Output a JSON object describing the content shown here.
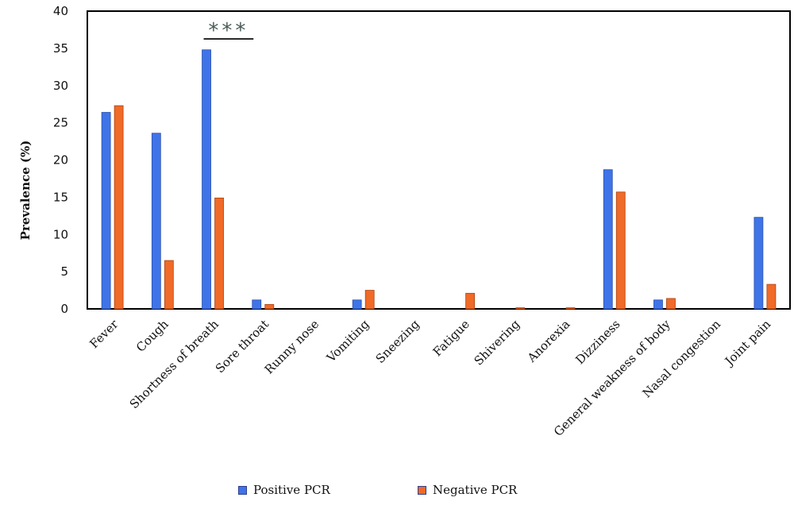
{
  "chart_data": {
    "type": "bar",
    "title": "",
    "xlabel": "",
    "ylabel": "Prevalence (%)",
    "ylim": [
      0,
      40
    ],
    "yticks": [
      0,
      5,
      10,
      15,
      20,
      25,
      30,
      35,
      40
    ],
    "grid": false,
    "legend_position": "bottom",
    "categories": [
      "Fever",
      "Cough",
      "Shortness of breath",
      "Sore throat",
      "Runny nose",
      "Vomiting",
      "Sneezing",
      "Fatigue",
      "Shivering",
      "Anorexia",
      "Dizziness",
      "General weakness of body",
      "Nasal congestion",
      "Joint pain"
    ],
    "series": [
      {
        "name": "Positive PCR",
        "color": "#3f74e8",
        "values": [
          26.4,
          23.6,
          34.8,
          1.2,
          0,
          1.2,
          0,
          0,
          0,
          0,
          18.7,
          1.2,
          0,
          12.3
        ]
      },
      {
        "name": "Negative PCR",
        "color": "#f06a28",
        "values": [
          27.3,
          6.5,
          14.9,
          0.6,
          0,
          2.5,
          0,
          2.1,
          0.1,
          0.1,
          15.7,
          1.4,
          0,
          3.3
        ]
      }
    ],
    "annotations": [
      {
        "text": "***",
        "category": "Shortness of breath"
      }
    ]
  }
}
